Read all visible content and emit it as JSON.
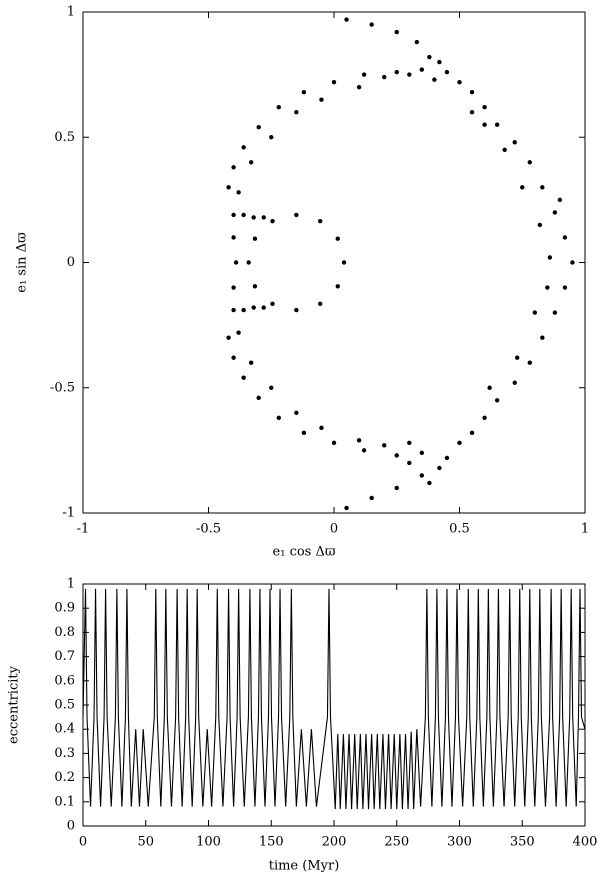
{
  "chart_data": [
    {
      "type": "scatter",
      "xlabel": "e₁ cos Δϖ",
      "ylabel": "e₁ sin Δϖ",
      "color": "#000000",
      "xlim": [
        -1,
        1
      ],
      "ylim": [
        -1,
        1
      ],
      "xticks": [
        -1,
        -0.5,
        0,
        0.5,
        1
      ],
      "yticks": [
        -1,
        -0.5,
        0,
        0.5,
        1
      ],
      "x": [
        0.04,
        0.015,
        -0.055,
        -0.15,
        -0.245,
        -0.315,
        -0.34,
        -0.315,
        -0.245,
        -0.15,
        -0.055,
        0.015,
        -0.4,
        -0.36,
        -0.32,
        -0.28,
        -0.4,
        -0.36,
        -0.32,
        -0.28,
        -0.4,
        -0.4,
        -0.39,
        -0.42,
        -0.4,
        -0.36,
        -0.3,
        -0.22,
        -0.12,
        0,
        0.12,
        0.25,
        0.35,
        -0.38,
        -0.33,
        -0.25,
        -0.15,
        -0.05,
        0.1,
        0.2,
        0.3,
        0.05,
        0.15,
        0.25,
        0.33,
        0.38,
        0.42,
        0.45,
        0.4,
        0.5,
        0.55,
        0.6,
        0.65,
        0.72,
        0.78,
        0.83,
        0.88,
        0.92,
        0.95,
        0.6,
        0.68,
        0.75,
        0.82,
        0.86,
        0.55,
        0.9,
        0.92,
        0.88,
        0.83,
        0.78,
        0.72,
        0.65,
        0.6,
        0.55,
        0.5,
        0.8,
        0.73,
        0.62,
        0.85,
        0.45,
        0.42,
        0.35,
        0.25,
        0.15,
        0.05,
        0.38,
        0.3,
        -0.42,
        -0.4,
        -0.36,
        -0.3,
        -0.22,
        -0.12,
        0,
        0.12,
        0.25,
        0.35,
        -0.38,
        -0.33,
        -0.25,
        -0.15,
        -0.05,
        0.1,
        0.2,
        0.3
      ],
      "values": [
        0,
        0.095,
        0.165,
        0.19,
        0.165,
        0.095,
        0,
        -0.095,
        -0.165,
        -0.19,
        -0.165,
        -0.095,
        0.19,
        0.19,
        0.18,
        0.18,
        -0.19,
        -0.19,
        -0.18,
        -0.18,
        0.1,
        -0.1,
        0,
        0.3,
        0.38,
        0.46,
        0.54,
        0.62,
        0.68,
        0.72,
        0.75,
        0.76,
        0.77,
        0.28,
        0.4,
        0.5,
        0.6,
        0.65,
        0.7,
        0.74,
        0.75,
        0.97,
        0.95,
        0.92,
        0.88,
        0.82,
        0.8,
        0.76,
        0.73,
        0.72,
        0.68,
        0.62,
        0.55,
        0.48,
        0.4,
        0.3,
        0.2,
        0.1,
        0,
        0.55,
        0.45,
        0.3,
        0.15,
        0.02,
        0.6,
        0.25,
        -0.1,
        -0.2,
        -0.3,
        -0.4,
        -0.48,
        -0.55,
        -0.62,
        -0.68,
        -0.72,
        -0.2,
        -0.38,
        -0.5,
        -0.1,
        -0.78,
        -0.82,
        -0.85,
        -0.9,
        -0.94,
        -0.98,
        -0.88,
        -0.8,
        -0.3,
        -0.38,
        -0.46,
        -0.54,
        -0.62,
        -0.68,
        -0.72,
        -0.75,
        -0.77,
        -0.76,
        -0.28,
        -0.4,
        -0.5,
        -0.6,
        -0.66,
        -0.71,
        -0.73,
        -0.72
      ]
    },
    {
      "type": "line",
      "xlabel": "time (Myr)",
      "ylabel": "eccentricity",
      "color": "#000000",
      "xlim": [
        0,
        400
      ],
      "ylim": [
        0,
        1
      ],
      "xticks": [
        0,
        50,
        100,
        150,
        200,
        250,
        300,
        350,
        400
      ],
      "yticks": [
        0,
        0.1,
        0.2,
        0.3,
        0.4,
        0.5,
        0.6,
        0.7,
        0.8,
        0.9,
        1
      ],
      "x": [
        0,
        2,
        3.2,
        6,
        8.8,
        10,
        11.2,
        14,
        16.8,
        18,
        19.2,
        22.5,
        25.8,
        27,
        28.2,
        31,
        33.8,
        35,
        36.2,
        38.5,
        42,
        45,
        48,
        52,
        56.8,
        58,
        59.2,
        62,
        64.8,
        66,
        67.2,
        70.5,
        73.8,
        75,
        76.2,
        79,
        81.8,
        83,
        84.2,
        87,
        89.8,
        91,
        92.2,
        95.5,
        99,
        102.5,
        105.8,
        107,
        108.2,
        111.5,
        114.8,
        116,
        117.2,
        120,
        122.8,
        124,
        125.2,
        128.5,
        131.8,
        133,
        134.2,
        137,
        139.8,
        141,
        142.2,
        145,
        147.8,
        149,
        150.2,
        153,
        155.8,
        157,
        158.2,
        161.5,
        164.8,
        166,
        167.2,
        170,
        174,
        178,
        182,
        186,
        194.8,
        196,
        197.2,
        201,
        203,
        205,
        207.5,
        209.5,
        212,
        214,
        216.5,
        218.5,
        221,
        223,
        225.5,
        227.5,
        230,
        232,
        234.5,
        236.5,
        239,
        241,
        243.5,
        245.5,
        248,
        250,
        252.5,
        254.5,
        257,
        259,
        261.5,
        263.5,
        266,
        269,
        272.8,
        274,
        275.2,
        278,
        280.8,
        282,
        283.2,
        286,
        288.8,
        290,
        291.2,
        294,
        296.8,
        298,
        299.2,
        302.5,
        305.8,
        307,
        308.2,
        311,
        313.8,
        315,
        316.2,
        319,
        321.8,
        323,
        324.2,
        327,
        329.8,
        331,
        332.2,
        335.5,
        338.8,
        340,
        341.2,
        344,
        346.8,
        348,
        349.2,
        352,
        354.8,
        356,
        357.2,
        360,
        362.8,
        364,
        365.2,
        368.5,
        371.8,
        373,
        374.2,
        377,
        379.8,
        381,
        382.2,
        385,
        387.8,
        389,
        390.2,
        393,
        394.8,
        396,
        397.2,
        400
      ],
      "values": [
        0.45,
        0.98,
        0.45,
        0.08,
        0.45,
        0.98,
        0.45,
        0.08,
        0.45,
        0.98,
        0.45,
        0.08,
        0.45,
        0.98,
        0.45,
        0.08,
        0.45,
        0.98,
        0.45,
        0.08,
        0.4,
        0.08,
        0.4,
        0.08,
        0.45,
        0.98,
        0.45,
        0.08,
        0.45,
        0.98,
        0.45,
        0.08,
        0.45,
        0.98,
        0.45,
        0.08,
        0.45,
        0.98,
        0.45,
        0.08,
        0.45,
        0.98,
        0.45,
        0.08,
        0.4,
        0.08,
        0.45,
        0.98,
        0.45,
        0.08,
        0.45,
        0.98,
        0.45,
        0.08,
        0.45,
        0.98,
        0.45,
        0.08,
        0.45,
        0.98,
        0.45,
        0.08,
        0.45,
        0.98,
        0.45,
        0.08,
        0.45,
        0.98,
        0.45,
        0.08,
        0.45,
        0.98,
        0.45,
        0.08,
        0.45,
        0.98,
        0.45,
        0.08,
        0.4,
        0.08,
        0.4,
        0.08,
        0.45,
        0.98,
        0.45,
        0.07,
        0.38,
        0.07,
        0.38,
        0.07,
        0.38,
        0.07,
        0.38,
        0.07,
        0.38,
        0.07,
        0.38,
        0.07,
        0.38,
        0.07,
        0.38,
        0.07,
        0.38,
        0.07,
        0.38,
        0.07,
        0.38,
        0.07,
        0.38,
        0.07,
        0.38,
        0.07,
        0.39,
        0.07,
        0.4,
        0.08,
        0.45,
        0.98,
        0.45,
        0.08,
        0.45,
        0.98,
        0.45,
        0.08,
        0.45,
        0.98,
        0.45,
        0.08,
        0.45,
        0.98,
        0.45,
        0.08,
        0.45,
        0.98,
        0.45,
        0.08,
        0.45,
        0.98,
        0.45,
        0.08,
        0.45,
        0.98,
        0.45,
        0.08,
        0.45,
        0.98,
        0.45,
        0.08,
        0.45,
        0.98,
        0.45,
        0.08,
        0.45,
        0.98,
        0.45,
        0.08,
        0.45,
        0.98,
        0.45,
        0.08,
        0.45,
        0.98,
        0.45,
        0.08,
        0.45,
        0.98,
        0.45,
        0.08,
        0.45,
        0.98,
        0.45,
        0.08,
        0.45,
        0.98,
        0.45,
        0.08,
        0.45,
        0.98,
        0.45,
        0.4
      ]
    }
  ]
}
